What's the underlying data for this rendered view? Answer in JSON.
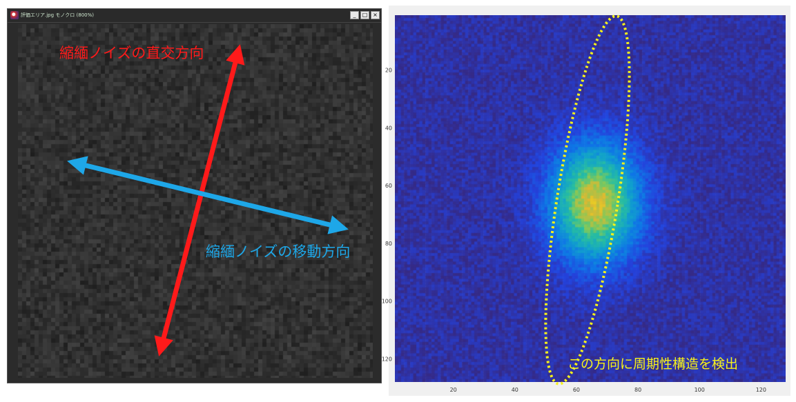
{
  "window": {
    "title": "評価エリア.jpg モノクロ (800%)",
    "buttons": {
      "minimize": "_",
      "maximize": "□",
      "close": "×"
    }
  },
  "left_annotations": {
    "red_label": "縮緬ノイズの直交方向",
    "blue_label": "縮緬ノイズの移動方向",
    "red_color": "#ff1a1a",
    "blue_color": "#1ea7e8"
  },
  "right_annotation": {
    "label": "この方向に周期性構造を検出",
    "color": "#f7f21a"
  },
  "chart_data": {
    "type": "heatmap",
    "title": "",
    "xlabel": "",
    "ylabel": "",
    "xlim": [
      1,
      128
    ],
    "ylim": [
      1,
      128
    ],
    "y_axis_direction": "top-to-bottom",
    "x_ticks": [
      "20",
      "40",
      "60",
      "80",
      "100",
      "120"
    ],
    "y_ticks": [
      "20",
      "40",
      "60",
      "80",
      "100",
      "120"
    ],
    "colormap": "parula",
    "peak_center": [
      65,
      65
    ],
    "peak_spread": [
      10,
      14
    ],
    "grid": false
  }
}
